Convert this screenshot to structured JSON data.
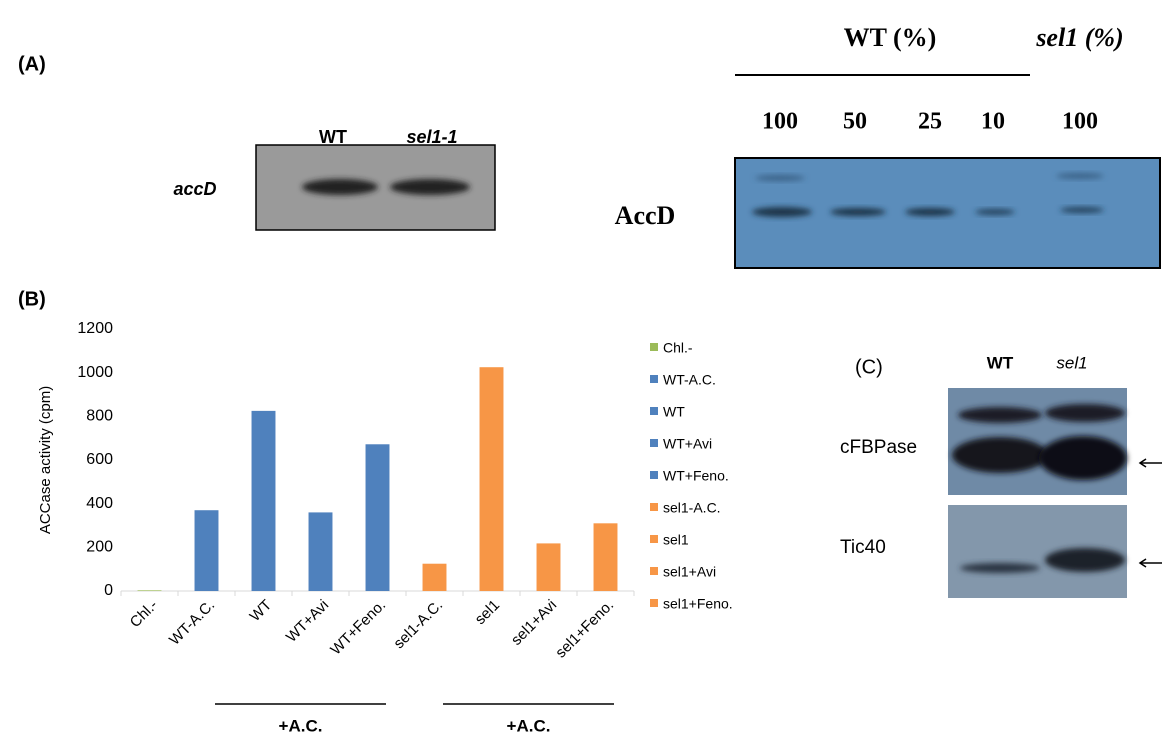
{
  "panel_a": {
    "label": "(A)",
    "rna_blot": {
      "lanes": [
        "WT",
        "sel1-1"
      ],
      "gene": "accD"
    },
    "protein_blot": {
      "groups": [
        "WT (%)",
        "sel1 (%)"
      ],
      "lanes": [
        "100",
        "50",
        "25",
        "10",
        "100"
      ],
      "protein": "AccD"
    }
  },
  "panel_b": {
    "label": "(B)"
  },
  "chart_data": {
    "type": "bar",
    "ylabel": "ACCase activity (cpm)",
    "categories": [
      "Chl.-",
      "WT-A.C.",
      "WT",
      "WT+Avi",
      "WT+Feno.",
      "sel1-A.C.",
      "sel1",
      "sel1+Avi",
      "sel1+Feno."
    ],
    "values": [
      3,
      370,
      825,
      360,
      672,
      125,
      1025,
      218,
      310
    ],
    "colors": [
      "#9bbb59",
      "#4f81bd",
      "#4f81bd",
      "#4f81bd",
      "#4f81bd",
      "#f79646",
      "#f79646",
      "#f79646",
      "#f79646"
    ],
    "ylim": [
      0,
      1200
    ],
    "yticks": [
      0,
      200,
      400,
      600,
      800,
      1000,
      1200
    ],
    "grid": false,
    "legend": "right",
    "group_labels": [
      "+A.C.",
      "+A.C."
    ]
  },
  "panel_c": {
    "label": "(C)",
    "lanes": [
      "WT",
      "sel1"
    ],
    "proteins": [
      "cFBPase",
      "Tic40"
    ]
  }
}
